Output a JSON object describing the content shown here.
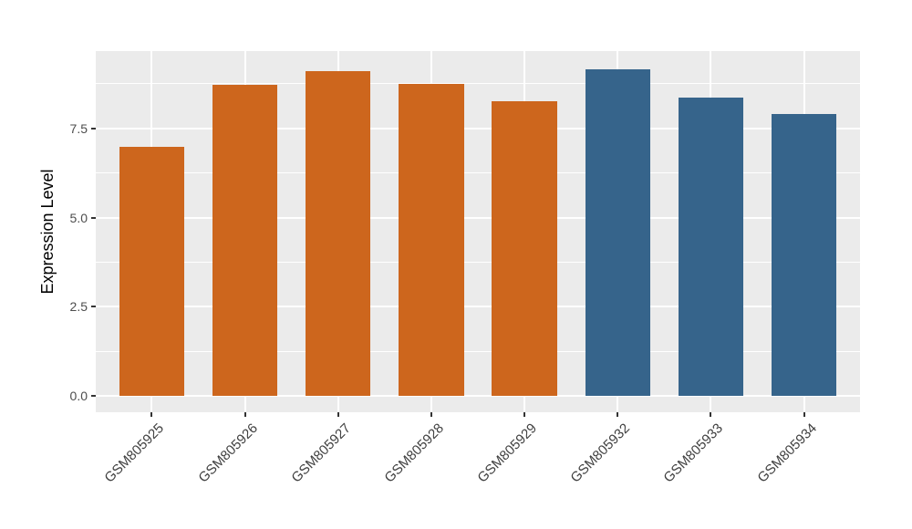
{
  "figure": {
    "background_color": "#FFFFFF",
    "panel_background_color": "#EBEBEB",
    "gridline_color": "#FFFFFF",
    "axis_tick_color": "#333333",
    "tick_label_color": "#4D4D4D",
    "axis_title_color": "#000000"
  },
  "chart_data": {
    "type": "bar",
    "title": "",
    "xlabel": "",
    "ylabel": "Expression Level",
    "categories": [
      "GSM805925",
      "GSM805926",
      "GSM805927",
      "GSM805928",
      "GSM805929",
      "GSM805932",
      "GSM805933",
      "GSM805934"
    ],
    "values": [
      6.98,
      8.72,
      9.11,
      8.75,
      8.26,
      9.16,
      8.36,
      7.9
    ],
    "bar_colors": [
      "#CD661D",
      "#CD661D",
      "#CD661D",
      "#CD661D",
      "#CD661D",
      "#36648B",
      "#36648B",
      "#36648B"
    ],
    "group_colors": {
      "orange_group": "#CD661D",
      "blue_group": "#36648B"
    },
    "ytick_values": [
      0,
      2.5,
      5,
      7.5
    ],
    "ytick_labels": [
      "0.0",
      "2.5",
      "5.0",
      "7.5"
    ],
    "yminor_values": [
      1.25,
      3.75,
      6.25,
      8.75
    ],
    "ylim": [
      -0.46,
      9.67
    ],
    "xlim": [
      0.4,
      8.6
    ],
    "bar_width_units": 0.7,
    "grid": "white major+minor horizontal gridlines, white vertical major gridlines at category centers, on gray panel",
    "legend": "none",
    "x_tick_label_rotation_deg": 45
  }
}
